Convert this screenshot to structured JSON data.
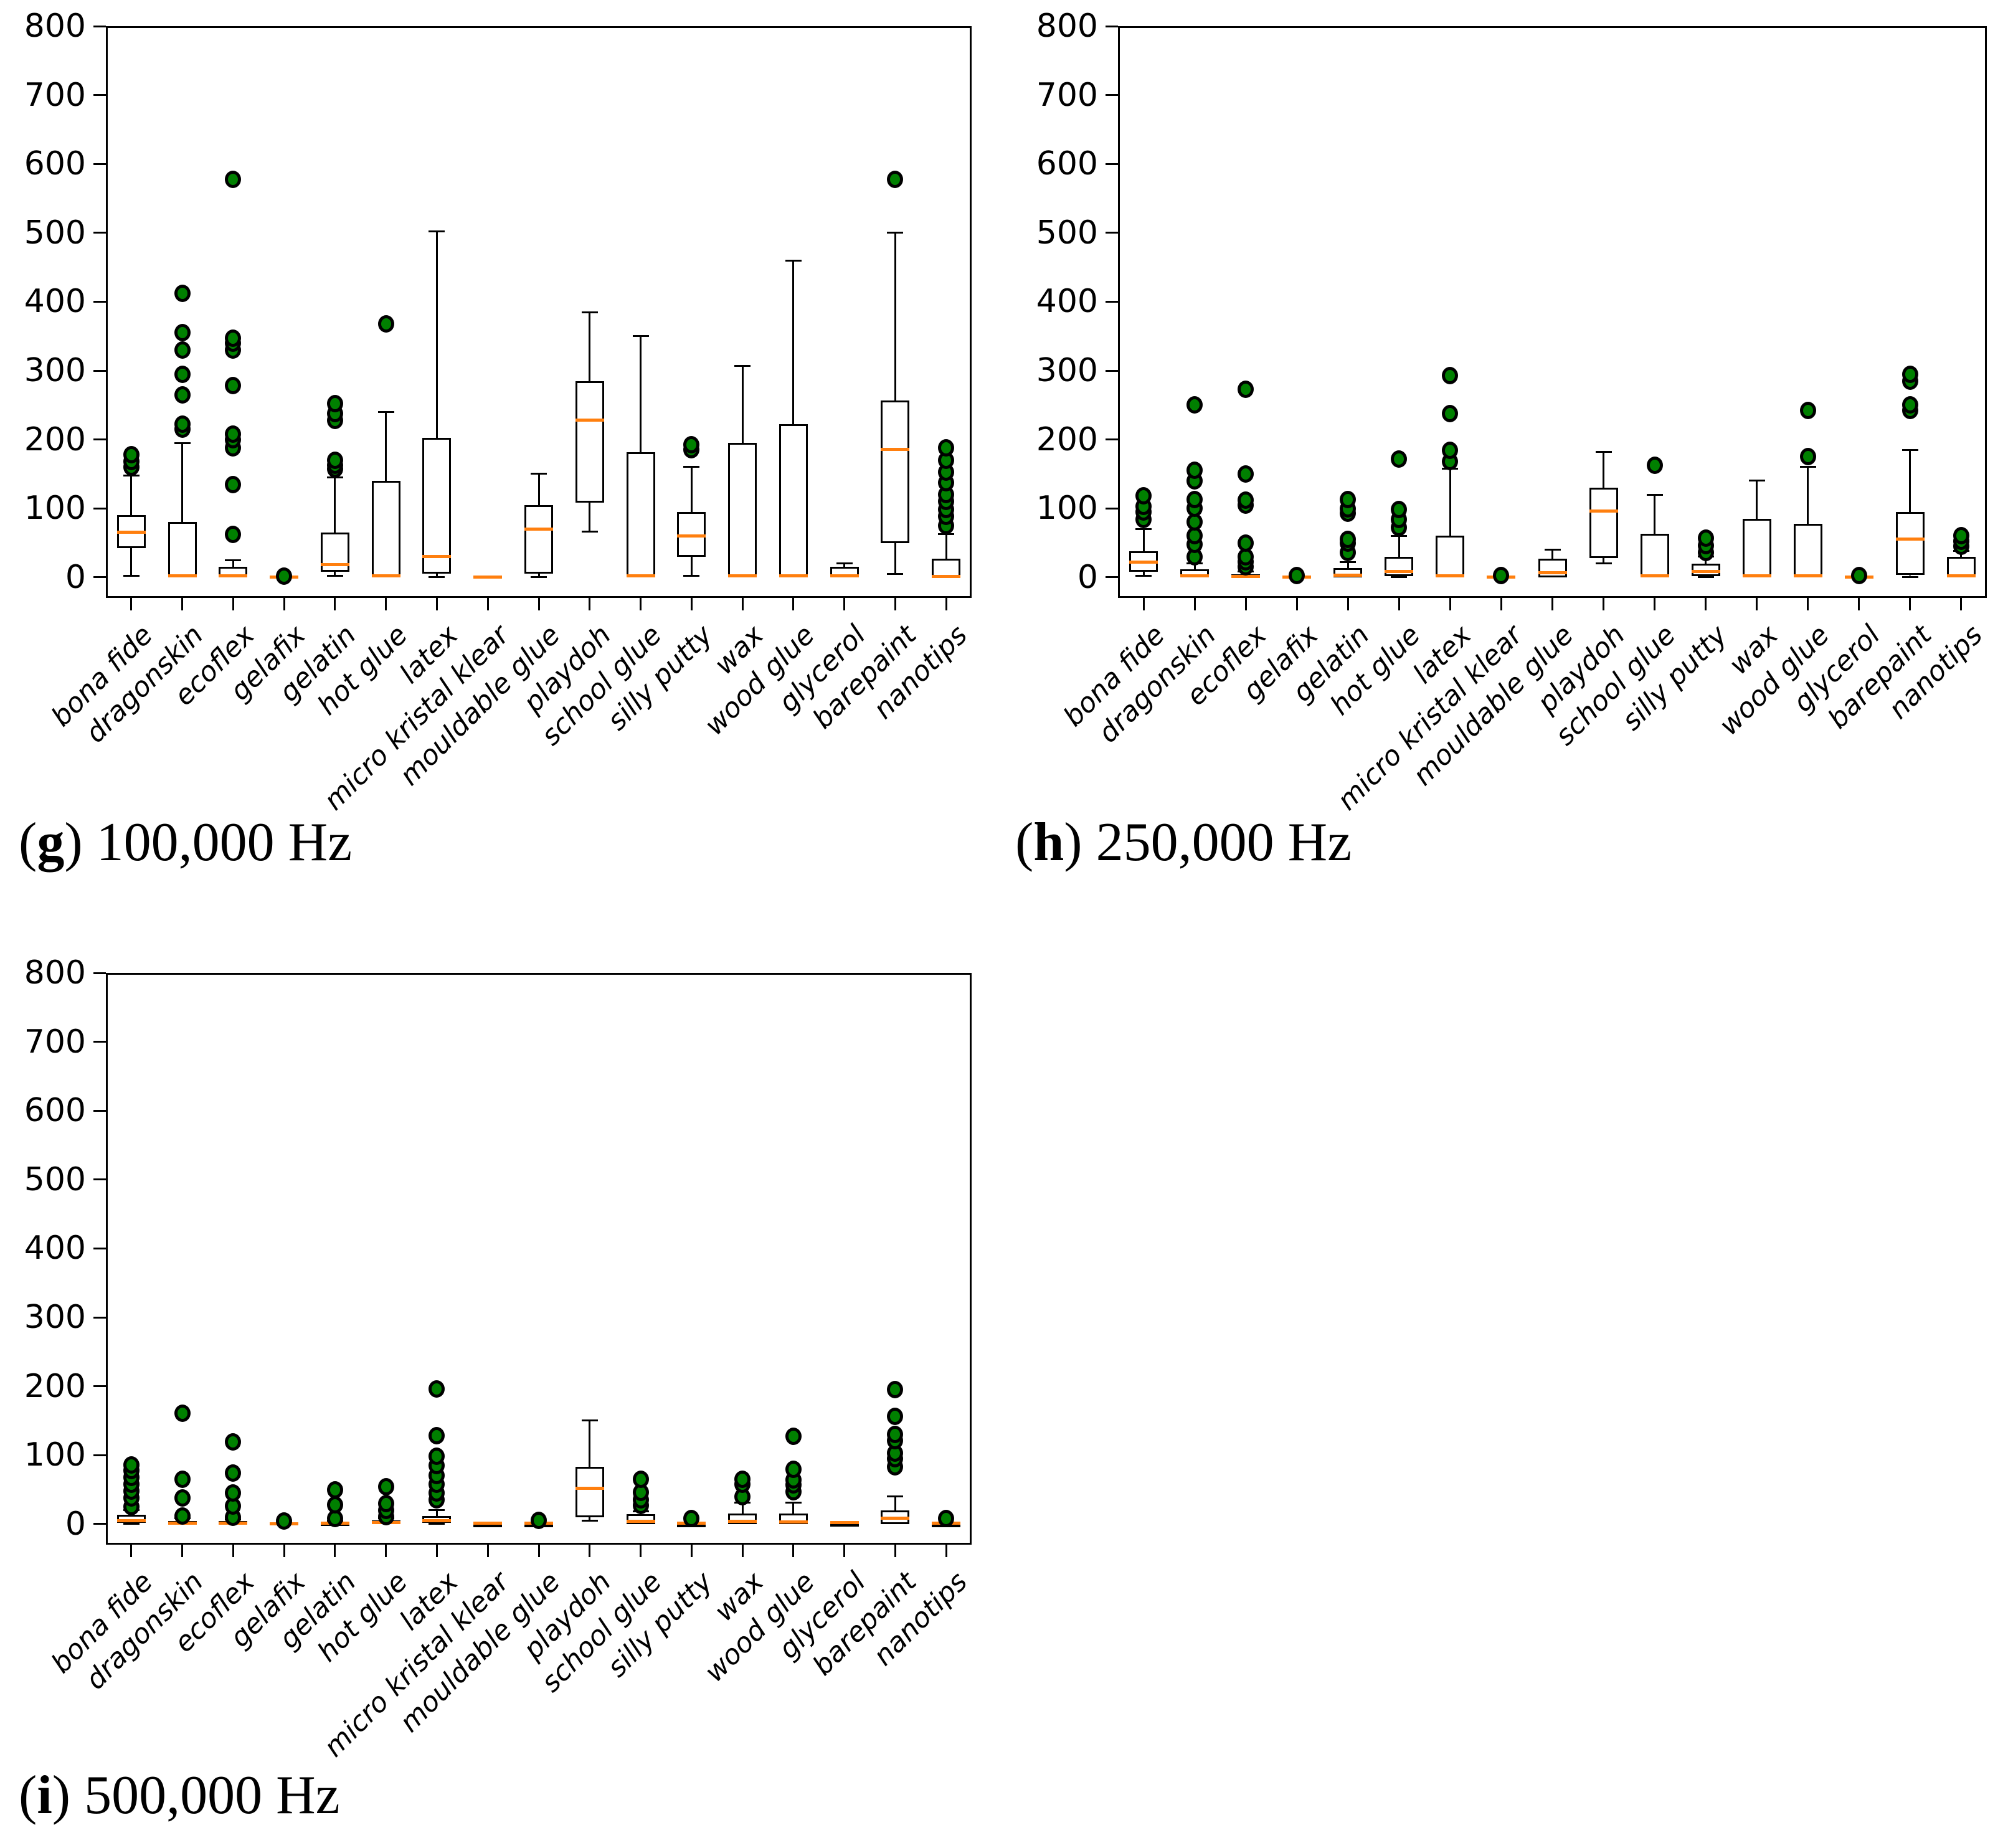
{
  "figure": {
    "background": "#ffffff",
    "colors": {
      "median": "#ff7f0e",
      "flier_fill": "#008000",
      "flier_edge": "#000000",
      "box_edge": "#000000"
    }
  },
  "chart_data": [
    {
      "type": "boxplot",
      "label_open": "(",
      "label_letter": "g",
      "label_close": ")",
      "caption": "100,000 Hz",
      "ylim": [
        0,
        800
      ],
      "yticks": [
        0,
        100,
        200,
        300,
        400,
        500,
        600,
        700,
        800
      ],
      "grid": false,
      "legend": "none",
      "categories": [
        "bona fide",
        "dragonskin",
        "ecoflex",
        "gelafix",
        "gelatin",
        "hot glue",
        "latex",
        "micro kristal klear",
        "mouldable glue",
        "playdoh",
        "school glue",
        "silly putty",
        "wax",
        "wood glue",
        "glycerol",
        "barepaint",
        "nanotips"
      ],
      "stats": [
        {
          "whislo": 2,
          "q1": 42,
          "med": 65,
          "q3": 90,
          "whishi": 148,
          "fliers": [
            160,
            168,
            178
          ]
        },
        {
          "whislo": 0,
          "q1": 0,
          "med": 2,
          "q3": 80,
          "whishi": 195,
          "fliers": [
            215,
            222,
            265,
            295,
            330,
            355,
            412
          ]
        },
        {
          "whislo": 0,
          "q1": 0,
          "med": 2,
          "q3": 15,
          "whishi": 25,
          "fliers": [
            62,
            135,
            188,
            200,
            208,
            278,
            330,
            340,
            347,
            578
          ]
        },
        {
          "whislo": 0,
          "q1": 0,
          "med": 0,
          "q3": 0,
          "whishi": 0,
          "fliers": [
            2
          ]
        },
        {
          "whislo": 2,
          "q1": 8,
          "med": 18,
          "q3": 65,
          "whishi": 145,
          "fliers": [
            157,
            163,
            170,
            228,
            238,
            252
          ]
        },
        {
          "whislo": 0,
          "q1": 0,
          "med": 2,
          "q3": 140,
          "whishi": 240,
          "fliers": [
            368
          ]
        },
        {
          "whislo": 0,
          "q1": 5,
          "med": 30,
          "q3": 202,
          "whishi": 502,
          "fliers": []
        },
        {
          "whislo": 0,
          "q1": 0,
          "med": 0,
          "q3": 0,
          "whishi": 0,
          "fliers": []
        },
        {
          "whislo": 0,
          "q1": 5,
          "med": 70,
          "q3": 105,
          "whishi": 150,
          "fliers": []
        },
        {
          "whislo": 66,
          "q1": 108,
          "med": 228,
          "q3": 285,
          "whishi": 385,
          "fliers": []
        },
        {
          "whislo": 0,
          "q1": 0,
          "med": 2,
          "q3": 182,
          "whishi": 350,
          "fliers": []
        },
        {
          "whislo": 2,
          "q1": 30,
          "med": 60,
          "q3": 95,
          "whishi": 160,
          "fliers": [
            185,
            192
          ]
        },
        {
          "whislo": 0,
          "q1": 0,
          "med": 2,
          "q3": 195,
          "whishi": 307,
          "fliers": []
        },
        {
          "whislo": 0,
          "q1": 0,
          "med": 2,
          "q3": 222,
          "whishi": 460,
          "fliers": []
        },
        {
          "whislo": 0,
          "q1": 0,
          "med": 2,
          "q3": 15,
          "whishi": 20,
          "fliers": []
        },
        {
          "whislo": 5,
          "q1": 50,
          "med": 186,
          "q3": 257,
          "whishi": 500,
          "fliers": [
            578
          ]
        },
        {
          "whislo": 0,
          "q1": 0,
          "med": 1,
          "q3": 27,
          "whishi": 63,
          "fliers": [
            75,
            88,
            98,
            110,
            120,
            137,
            153,
            170,
            188
          ]
        }
      ]
    },
    {
      "type": "boxplot",
      "label_open": "(",
      "label_letter": "h",
      "label_close": ")",
      "caption": "250,000 Hz",
      "ylim": [
        0,
        800
      ],
      "yticks": [
        0,
        100,
        200,
        300,
        400,
        500,
        600,
        700,
        800
      ],
      "grid": false,
      "legend": "none",
      "categories": [
        "bona fide",
        "dragonskin",
        "ecoflex",
        "gelafix",
        "gelatin",
        "hot glue",
        "latex",
        "micro kristal klear",
        "mouldable glue",
        "playdoh",
        "school glue",
        "silly putty",
        "wax",
        "wood glue",
        "glycerol",
        "barepaint",
        "nanotips"
      ],
      "stats": [
        {
          "whislo": 2,
          "q1": 8,
          "med": 22,
          "q3": 38,
          "whishi": 70,
          "fliers": [
            84,
            95,
            103,
            118
          ]
        },
        {
          "whislo": 0,
          "q1": 0,
          "med": 2,
          "q3": 12,
          "whishi": 20,
          "fliers": [
            30,
            48,
            60,
            80,
            100,
            113,
            140,
            155,
            250
          ]
        },
        {
          "whislo": 0,
          "q1": 0,
          "med": 1,
          "q3": 4,
          "whishi": 8,
          "fliers": [
            15,
            22,
            30,
            50,
            105,
            112,
            150,
            273
          ]
        },
        {
          "whislo": 0,
          "q1": 0,
          "med": 0,
          "q3": 0,
          "whishi": 0,
          "fliers": [
            3
          ]
        },
        {
          "whislo": 0,
          "q1": 0,
          "med": 3,
          "q3": 13,
          "whishi": 22,
          "fliers": [
            36,
            50,
            55,
            93,
            99,
            113
          ]
        },
        {
          "whislo": 0,
          "q1": 2,
          "med": 8,
          "q3": 30,
          "whishi": 60,
          "fliers": [
            72,
            84,
            98,
            172
          ]
        },
        {
          "whislo": 0,
          "q1": 0,
          "med": 2,
          "q3": 60,
          "whishi": 158,
          "fliers": [
            168,
            184,
            238,
            293
          ]
        },
        {
          "whislo": 0,
          "q1": 0,
          "med": 0,
          "q3": 0,
          "whishi": 0,
          "fliers": [
            3
          ]
        },
        {
          "whislo": 0,
          "q1": 0,
          "med": 7,
          "q3": 27,
          "whishi": 40,
          "fliers": []
        },
        {
          "whislo": 20,
          "q1": 28,
          "med": 96,
          "q3": 130,
          "whishi": 182,
          "fliers": []
        },
        {
          "whislo": 0,
          "q1": 0,
          "med": 2,
          "q3": 63,
          "whishi": 120,
          "fliers": [
            163
          ]
        },
        {
          "whislo": 0,
          "q1": 2,
          "med": 8,
          "q3": 20,
          "whishi": 30,
          "fliers": [
            36,
            46,
            57
          ]
        },
        {
          "whislo": 0,
          "q1": 0,
          "med": 2,
          "q3": 85,
          "whishi": 140,
          "fliers": []
        },
        {
          "whislo": 0,
          "q1": 0,
          "med": 2,
          "q3": 78,
          "whishi": 160,
          "fliers": [
            175,
            242
          ]
        },
        {
          "whislo": 0,
          "q1": 0,
          "med": 0,
          "q3": 0,
          "whishi": 0,
          "fliers": [
            3
          ]
        },
        {
          "whislo": 0,
          "q1": 3,
          "med": 55,
          "q3": 95,
          "whishi": 185,
          "fliers": [
            242,
            250,
            285,
            295
          ]
        },
        {
          "whislo": 0,
          "q1": 0,
          "med": 2,
          "q3": 30,
          "whishi": 38,
          "fliers": [
            45,
            52,
            60
          ]
        }
      ]
    },
    {
      "type": "boxplot",
      "label_open": "(",
      "label_letter": "i",
      "label_close": ")",
      "caption": "500,000 Hz",
      "ylim": [
        0,
        800
      ],
      "yticks": [
        0,
        100,
        200,
        300,
        400,
        500,
        600,
        700,
        800
      ],
      "grid": false,
      "legend": "none",
      "categories": [
        "bona fide",
        "dragonskin",
        "ecoflex",
        "gelafix",
        "gelatin",
        "hot glue",
        "latex",
        "micro kristal klear",
        "mouldable glue",
        "playdoh",
        "school glue",
        "silly putty",
        "wax",
        "wood glue",
        "glycerol",
        "barepaint",
        "nanotips"
      ],
      "stats": [
        {
          "whislo": 0,
          "q1": 2,
          "med": 5,
          "q3": 13,
          "whishi": 20,
          "fliers": [
            25,
            38,
            48,
            58,
            68,
            78,
            86
          ]
        },
        {
          "whislo": 0,
          "q1": 0,
          "med": 1,
          "q3": 4,
          "whishi": 8,
          "fliers": [
            12,
            38,
            65,
            161
          ]
        },
        {
          "whislo": 0,
          "q1": 0,
          "med": 1,
          "q3": 4,
          "whishi": 7,
          "fliers": [
            10,
            26,
            45,
            74,
            119
          ]
        },
        {
          "whislo": 0,
          "q1": 0,
          "med": 0,
          "q3": 0,
          "whishi": 0,
          "fliers": [
            4
          ]
        },
        {
          "whislo": 0,
          "q1": 0,
          "med": 1,
          "q3": 3,
          "whishi": 5,
          "fliers": [
            8,
            28,
            50
          ]
        },
        {
          "whislo": 0,
          "q1": 0,
          "med": 2,
          "q3": 5,
          "whishi": 8,
          "fliers": [
            11,
            20,
            30,
            54
          ]
        },
        {
          "whislo": 0,
          "q1": 2,
          "med": 5,
          "q3": 12,
          "whishi": 20,
          "fliers": [
            35,
            45,
            58,
            70,
            85,
            98,
            128,
            196
          ]
        },
        {
          "whislo": 0,
          "q1": 0,
          "med": 1,
          "q3": 1,
          "whishi": 1,
          "fliers": []
        },
        {
          "whislo": 0,
          "q1": 0,
          "med": 1,
          "q3": 1,
          "whishi": 1,
          "fliers": [
            5
          ]
        },
        {
          "whislo": 5,
          "q1": 10,
          "med": 52,
          "q3": 83,
          "whishi": 150,
          "fliers": []
        },
        {
          "whislo": 0,
          "q1": 0,
          "med": 4,
          "q3": 14,
          "whishi": 18,
          "fliers": [
            27,
            35,
            46,
            65
          ]
        },
        {
          "whislo": 0,
          "q1": 0,
          "med": 1,
          "q3": 1,
          "whishi": 1,
          "fliers": [
            8
          ]
        },
        {
          "whislo": 0,
          "q1": 0,
          "med": 4,
          "q3": 15,
          "whishi": 31,
          "fliers": [
            40,
            58,
            65
          ]
        },
        {
          "whislo": 0,
          "q1": 0,
          "med": 3,
          "q3": 15,
          "whishi": 31,
          "fliers": [
            47,
            57,
            64,
            79,
            127
          ]
        },
        {
          "whislo": 0,
          "q1": 0,
          "med": 2,
          "q3": 2,
          "whishi": 2,
          "fliers": []
        },
        {
          "whislo": 0,
          "q1": 0,
          "med": 8,
          "q3": 20,
          "whishi": 40,
          "fliers": [
            83,
            95,
            103,
            121,
            130,
            156,
            195
          ]
        },
        {
          "whislo": 0,
          "q1": 0,
          "med": 1,
          "q3": 1,
          "whishi": 1,
          "fliers": [
            8
          ]
        }
      ]
    }
  ]
}
